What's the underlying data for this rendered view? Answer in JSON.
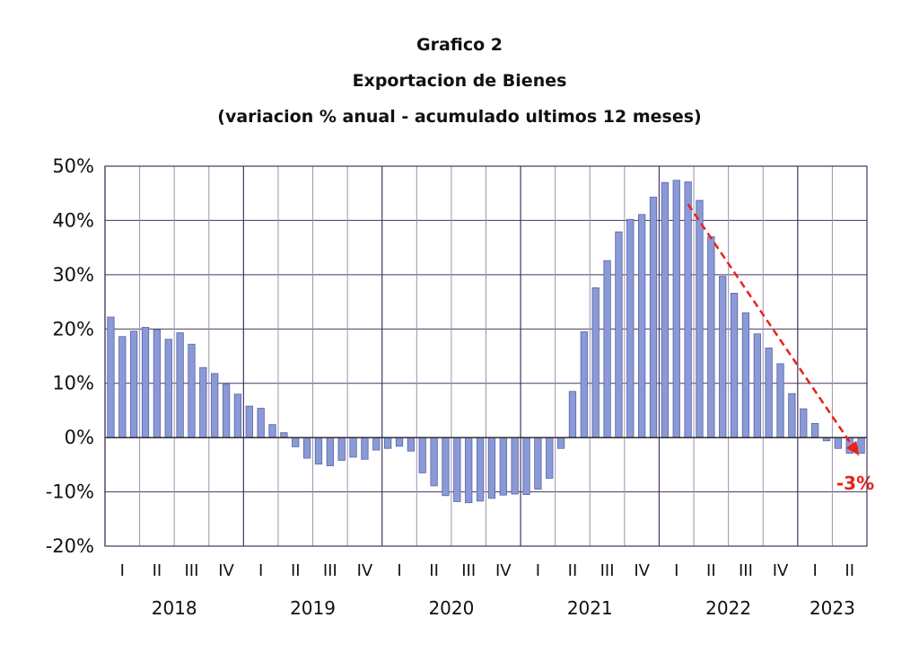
{
  "chart_data": {
    "type": "bar",
    "title": "Grafico 2",
    "subtitle": "Exportacion de Bienes",
    "subtitle2": "(variacion % anual - acumulado ultimos 12 meses)",
    "ylim": [
      -20,
      50
    ],
    "yticks": [
      "50%",
      "40%",
      "30%",
      "20%",
      "10%",
      "0%",
      "-10%",
      "-20%"
    ],
    "quarter_labels": [
      "I",
      "II",
      "III",
      "IV",
      "I",
      "II",
      "III",
      "IV",
      "I",
      "II",
      "III",
      "IV",
      "I",
      "II",
      "III",
      "IV",
      "I",
      "II",
      "III",
      "IV",
      "I",
      "II"
    ],
    "year_labels": [
      "2018",
      "2019",
      "2020",
      "2021",
      "2022",
      "2023"
    ],
    "grid": true,
    "bar_color": "#8b9ad6",
    "trend_color": "#e8231a",
    "values": [
      22.2,
      18.6,
      19.6,
      20.3,
      19.9,
      18.1,
      19.3,
      17.2,
      12.9,
      11.8,
      9.8,
      8.0,
      5.8,
      5.4,
      2.4,
      0.9,
      -1.7,
      -3.8,
      -4.9,
      -5.2,
      -4.2,
      -3.6,
      -4.0,
      -2.3,
      -2.0,
      -1.6,
      -2.5,
      -6.5,
      -8.9,
      -10.7,
      -11.8,
      -12.0,
      -11.7,
      -11.2,
      -10.6,
      -10.4,
      -10.5,
      -9.5,
      -7.5,
      -2.0,
      8.5,
      19.5,
      27.6,
      32.6,
      37.9,
      40.2,
      41.1,
      44.3,
      47.0,
      47.4,
      47.1,
      43.7,
      37.0,
      29.7,
      26.6,
      23.0,
      19.1,
      16.5,
      13.6,
      8.1,
      5.3,
      2.6,
      -0.6,
      -2.0,
      -2.9,
      -2.9
    ],
    "annotation": "-3%"
  }
}
